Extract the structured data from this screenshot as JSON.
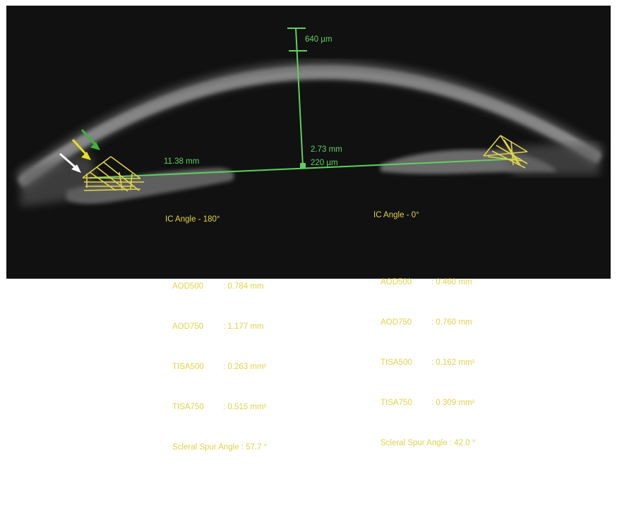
{
  "measurements": {
    "central_thickness": "640 µm",
    "acd": "2.73 mm",
    "lens_vault": "220 µm",
    "ata": "11.38 mm"
  },
  "left_panel": {
    "title": "IC Angle - 180°",
    "rows": [
      {
        "key": "AOD500",
        "value": ": 0.784 mm"
      },
      {
        "key": "AOD750",
        "value": ": 1.177 mm"
      },
      {
        "key": "TISA500",
        "value": ": 0.263 mm²"
      },
      {
        "key": "TISA750",
        "value": ": 0.515 mm²"
      }
    ],
    "scleral": "Scleral Spur Angle : 57.7 °"
  },
  "right_panel": {
    "title": "IC Angle - 0°",
    "rows": [
      {
        "key": "AOD500",
        "value": ": 0.460 mm"
      },
      {
        "key": "AOD750",
        "value": ": 0.760 mm"
      },
      {
        "key": "TISA500",
        "value": ": 0.162 mm²"
      },
      {
        "key": "TISA750",
        "value": ": 0.309 mm²"
      }
    ],
    "scleral": "Scleral Spur Angle : 42.0 °"
  },
  "colors": {
    "measure": "#5fd05f",
    "angle": "#e0d24a",
    "arrow_white": "#ffffff",
    "arrow_yellow": "#e8e020",
    "arrow_green": "#3cb43c"
  }
}
